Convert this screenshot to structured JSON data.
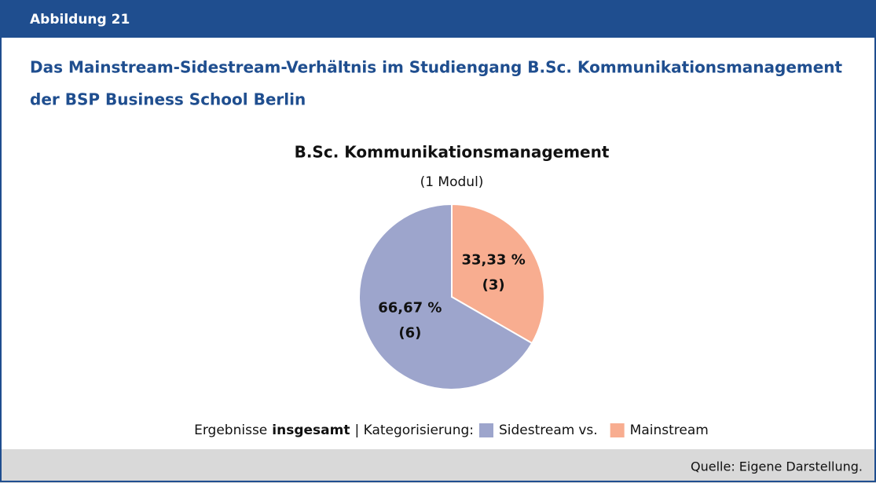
{
  "figure_label": "Abbildung 21",
  "heading": [
    "Das Mainstream-Sidestream-Verhältnis im Studiengang B.Sc. Kommunikationsmanagement",
    "der BSP Business School Berlin"
  ],
  "source": "Quelle: Eigene Darstellung.",
  "chart_data": {
    "type": "pie",
    "title": "B.Sc. Kommunikationsmanagement",
    "subtitle": "(1 Modul)",
    "categories": [
      "Mainstream",
      "Sidestream"
    ],
    "values": [
      33.33,
      66.67
    ],
    "value_labels": [
      "33,33 %",
      "66,67 %"
    ],
    "counts": [
      3,
      6
    ],
    "count_labels": [
      "(3)",
      "(6)"
    ],
    "colors": [
      "#f8ad90",
      "#9da5cc"
    ],
    "legend_text": [
      "Ergebnisse",
      "insgesamt",
      "| Kategorisierung:"
    ],
    "legend_order": [
      1,
      0
    ],
    "legend_separator": "vs."
  }
}
